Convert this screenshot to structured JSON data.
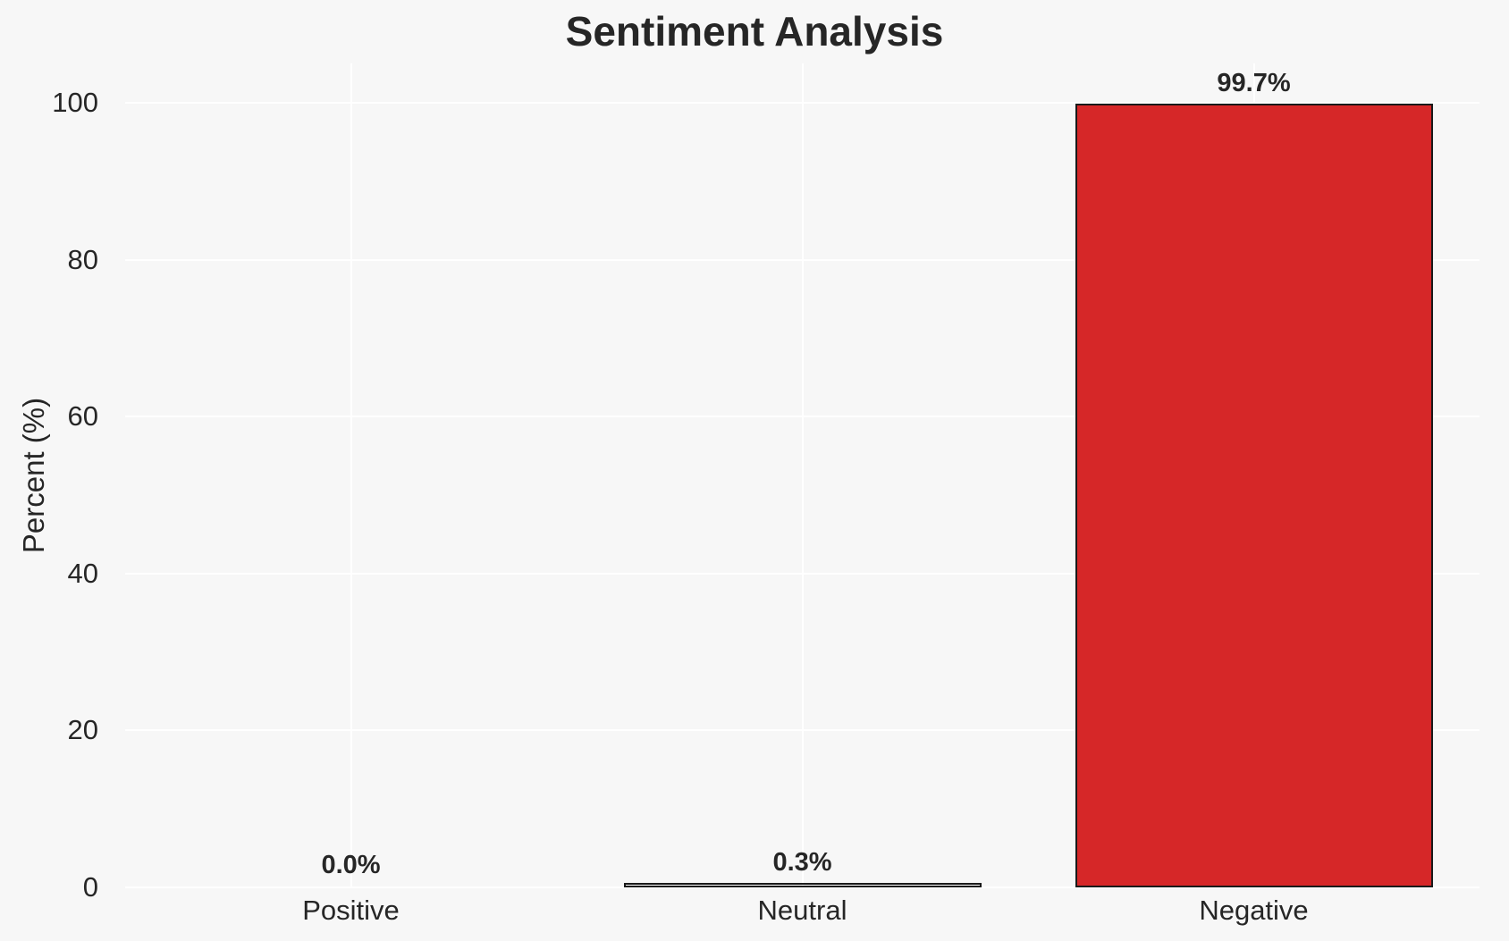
{
  "figure": {
    "background": "#f7f7f7",
    "grid_color": "#ffffff",
    "text_color": "#262626",
    "bar_edge_color": "#1a1a1a"
  },
  "chart_data": {
    "type": "bar",
    "title": "Sentiment Analysis",
    "categories": [
      "Positive",
      "Neutral",
      "Negative"
    ],
    "values": [
      0.0,
      0.3,
      99.7
    ],
    "value_labels": [
      "0.0%",
      "0.3%",
      "99.7%"
    ],
    "bar_colors": [
      "none",
      "none",
      "#d62728"
    ],
    "xlabel": "",
    "ylabel": "Percent (%)",
    "yticks": [
      0,
      20,
      40,
      60,
      80,
      100
    ],
    "ylim": [
      0,
      105
    ],
    "grid": "on",
    "legend_position": "none"
  }
}
